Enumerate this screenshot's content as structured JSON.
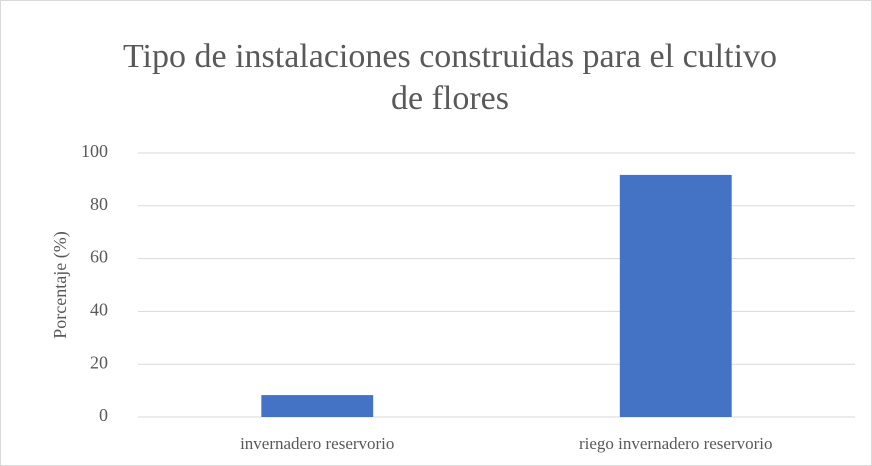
{
  "chart_data": {
    "type": "bar",
    "title": "Tipo de instalaciones construidas para el cultivo de flores",
    "ylabel": "Porcentaje (%)",
    "categories": [
      "invernadero reservorio",
      "riego invernadero reservorio"
    ],
    "values": [
      8.3,
      91.7
    ],
    "color": "#4472c4",
    "ylim": [
      0,
      100
    ],
    "yticks": [
      0,
      20,
      40,
      60,
      80,
      100
    ],
    "grid": true
  }
}
